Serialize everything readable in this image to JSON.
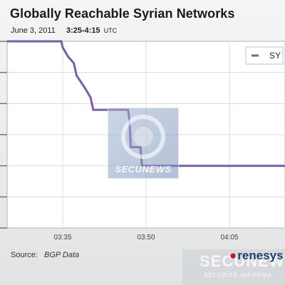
{
  "header": {
    "title": "Globally Reachable Syrian Networks",
    "date": "June 3, 2011",
    "time_range": "3:25-4:15",
    "timezone": "UTC"
  },
  "footer": {
    "source_label": "Source:",
    "source_value": "BGP Data",
    "brand": "renesys"
  },
  "watermarks": {
    "center": "SECUNEWS",
    "corner": "SECUNEWS",
    "corner_sub": "SÉCURITÉ INFORMA"
  },
  "colors": {
    "line": "#7b5ea8",
    "grid": "#d8dcdf",
    "plot_bg": "#ffffff"
  },
  "chart_data": {
    "type": "line",
    "title": "Globally Reachable Syrian Networks",
    "xlabel": "",
    "ylabel": "",
    "x_ticks": [
      "03:35",
      "03:50",
      "04:05"
    ],
    "xlim": [
      "03:25",
      "04:15"
    ],
    "y_ticks_visible": false,
    "grid": true,
    "legend_position": "top-right",
    "series": [
      {
        "name": "SY",
        "points": [
          {
            "x": "03:25",
            "y": 60
          },
          {
            "x": "03:34:45",
            "y": 60
          },
          {
            "x": "03:35:00",
            "y": 58
          },
          {
            "x": "03:36:00",
            "y": 55
          },
          {
            "x": "03:37:00",
            "y": 53
          },
          {
            "x": "03:37:30",
            "y": 49
          },
          {
            "x": "03:39:00",
            "y": 45
          },
          {
            "x": "03:40:00",
            "y": 42
          },
          {
            "x": "03:40:30",
            "y": 38
          },
          {
            "x": "03:46:45",
            "y": 38
          },
          {
            "x": "03:47:00",
            "y": 35
          },
          {
            "x": "03:47:15",
            "y": 26
          },
          {
            "x": "03:49:00",
            "y": 26
          },
          {
            "x": "03:49:15",
            "y": 20
          },
          {
            "x": "04:15",
            "y": 20
          }
        ]
      }
    ]
  }
}
